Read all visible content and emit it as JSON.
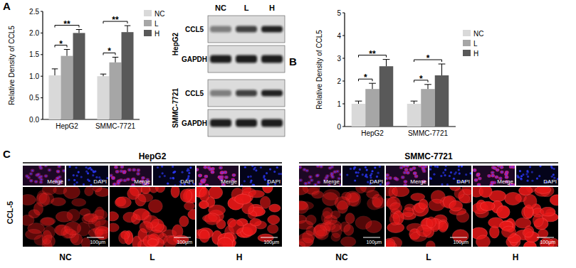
{
  "panel_labels": [
    "A",
    "B",
    "C"
  ],
  "chart_data": [
    {
      "type": "bar",
      "y_label": "Relative Density of CCL5",
      "categories": [
        "HepG2",
        "SMMC-7721"
      ],
      "series": [
        {
          "name": "NC",
          "color": "#d9d9d9",
          "values": [
            1.02,
            1.0
          ],
          "errors": [
            0.15,
            0.05
          ]
        },
        {
          "name": "L",
          "color": "#a6a6a6",
          "values": [
            1.47,
            1.32
          ],
          "errors": [
            0.15,
            0.12
          ]
        },
        {
          "name": "H",
          "color": "#595959",
          "values": [
            2.0,
            2.02
          ],
          "errors": [
            0.08,
            0.15
          ]
        }
      ],
      "ylim": [
        0,
        2.5
      ],
      "yticks": [
        {
          "value": 0,
          "label": "0.0"
        },
        {
          "value": 0.5,
          "label": "0.5"
        },
        {
          "value": 1,
          "label": "1.0"
        },
        {
          "value": 1.5,
          "label": "1.5"
        },
        {
          "value": 2,
          "label": "2.0"
        },
        {
          "value": 2.5,
          "label": "2.5"
        }
      ],
      "grid": false,
      "legend": "top-right",
      "annotations": [
        {
          "text": "*",
          "category": "HepG2",
          "between": [
            "NC",
            "L"
          ]
        },
        {
          "text": "**",
          "category": "HepG2",
          "between": [
            "NC",
            "H"
          ]
        },
        {
          "text": "*",
          "category": "SMMC-7721",
          "between": [
            "NC",
            "L"
          ]
        },
        {
          "text": "**",
          "category": "SMMC-7721",
          "between": [
            "NC",
            "H"
          ]
        }
      ]
    },
    {
      "type": "bar",
      "y_label": "Relative Density of CCL5",
      "categories": [
        "HepG2",
        "SMMC-7721"
      ],
      "series": [
        {
          "name": "NC",
          "color": "#d9d9d9",
          "values": [
            1.0,
            1.0
          ],
          "errors": [
            0.12,
            0.12
          ]
        },
        {
          "name": "L",
          "color": "#a6a6a6",
          "values": [
            1.65,
            1.65
          ],
          "errors": [
            0.25,
            0.2
          ]
        },
        {
          "name": "H",
          "color": "#595959",
          "values": [
            2.65,
            2.25
          ],
          "errors": [
            0.3,
            0.5
          ]
        }
      ],
      "ylim": [
        0,
        5
      ],
      "yticks": [
        0,
        1,
        2,
        3,
        4,
        5
      ],
      "grid": false,
      "legend": "top-right",
      "annotations": [
        {
          "text": "*",
          "category": "HepG2",
          "between": [
            "NC",
            "L"
          ]
        },
        {
          "text": "**",
          "category": "HepG2",
          "between": [
            "NC",
            "H"
          ]
        },
        {
          "text": "*",
          "category": "SMMC-7721",
          "between": [
            "NC",
            "L"
          ]
        },
        {
          "text": "*",
          "category": "SMMC-7721",
          "between": [
            "NC",
            "H"
          ]
        }
      ]
    }
  ],
  "blot": {
    "lanes": [
      "NC",
      "L",
      "H"
    ],
    "groups": [
      {
        "name": "HepG2",
        "rows": [
          "CCL5",
          "GAPDH"
        ]
      },
      {
        "name": "SMMC-7721",
        "rows": [
          "CCL5",
          "GAPDH"
        ]
      }
    ]
  },
  "fluorescence": {
    "row_label": "CCL-5",
    "small_labels": [
      "Merge",
      "DAPI"
    ],
    "scale_bar": "100μm",
    "groups": [
      {
        "name": "HepG2",
        "conditions": [
          "NC",
          "L",
          "H"
        ]
      },
      {
        "name": "SMMC-7721",
        "conditions": [
          "NC",
          "L",
          "H"
        ]
      }
    ]
  }
}
